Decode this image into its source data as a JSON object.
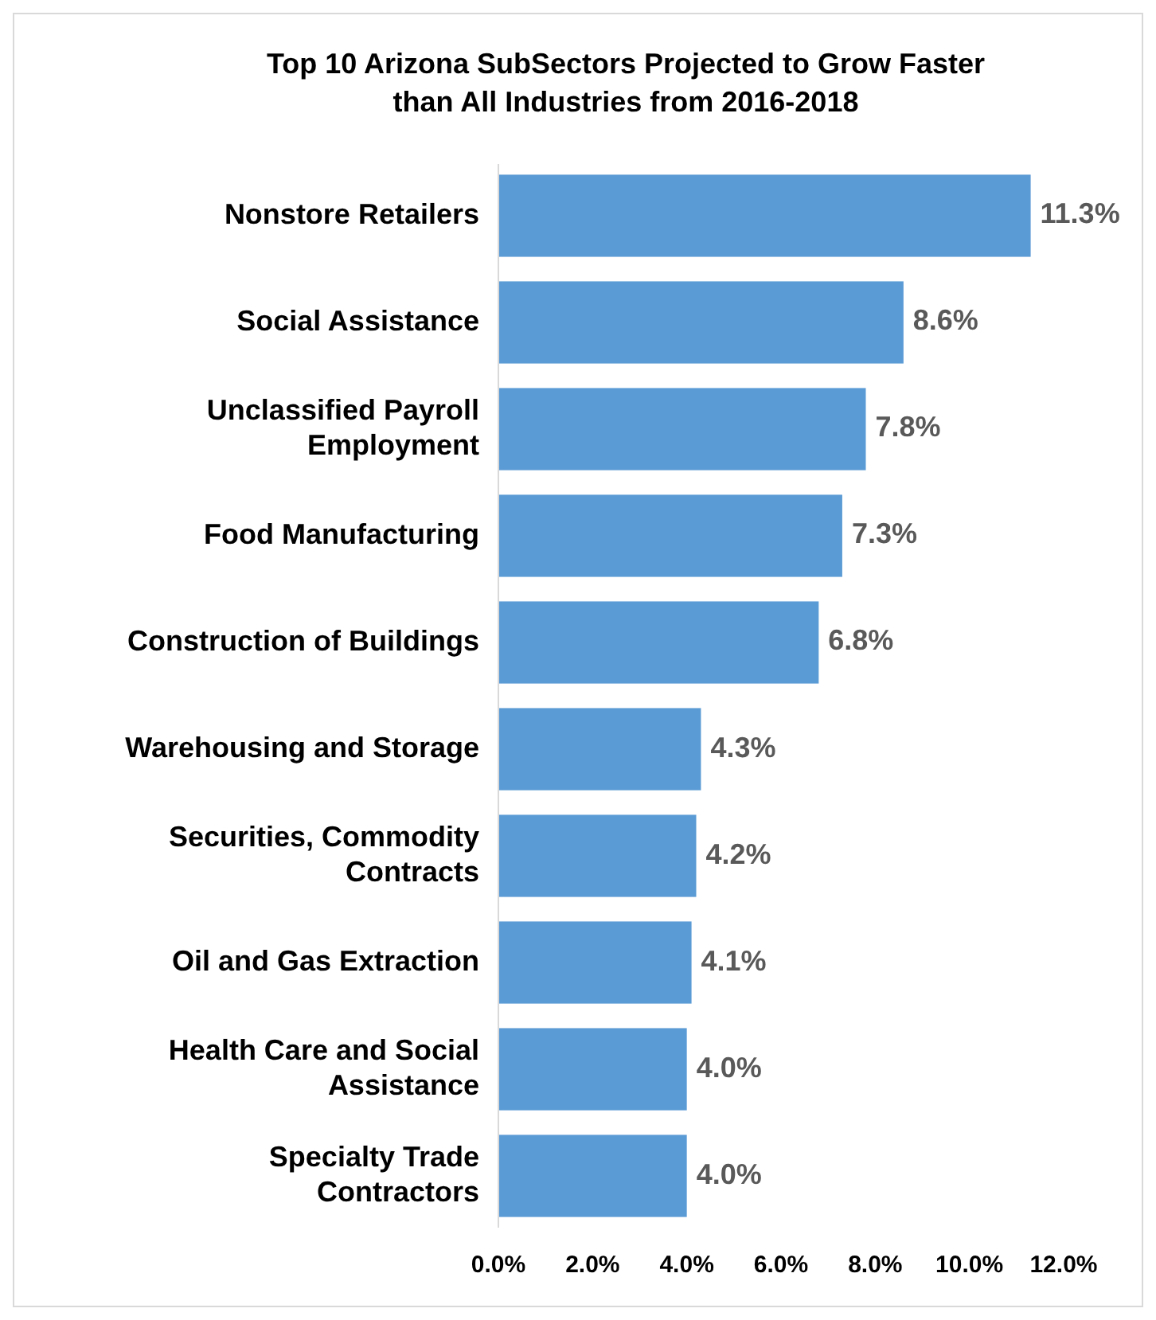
{
  "chart_data": {
    "type": "bar",
    "orientation": "horizontal",
    "title": "Top 10 Arizona SubSectors Projected to Grow Faster than All Industries from 2016-2018",
    "categories": [
      "Nonstore Retailers",
      "Social Assistance",
      "Unclassified Payroll Employment",
      "Food Manufacturing",
      "Construction of Buildings",
      "Warehousing and Storage",
      "Securities, Commodity Contracts",
      "Oil and Gas Extraction",
      "Health Care and Social Assistance",
      "Specialty Trade Contractors"
    ],
    "values": [
      11.3,
      8.6,
      7.8,
      7.3,
      6.8,
      4.3,
      4.2,
      4.1,
      4.0,
      4.0
    ],
    "value_labels": [
      "11.3%",
      "8.6%",
      "7.8%",
      "7.3%",
      "6.8%",
      "4.3%",
      "4.2%",
      "4.1%",
      "4.0%",
      "4.0%"
    ],
    "color": "#5b9bd5",
    "xlim": [
      0,
      12
    ],
    "xticks": [
      {
        "value": 0,
        "label": "0.0%"
      },
      {
        "value": 2,
        "label": "2.0%"
      },
      {
        "value": 4,
        "label": "4.0%"
      },
      {
        "value": 6,
        "label": "6.0%"
      },
      {
        "value": 8,
        "label": "8.0%"
      },
      {
        "value": 10,
        "label": "10.0%"
      },
      {
        "value": 12,
        "label": "12.0%"
      }
    ],
    "grid": false
  }
}
